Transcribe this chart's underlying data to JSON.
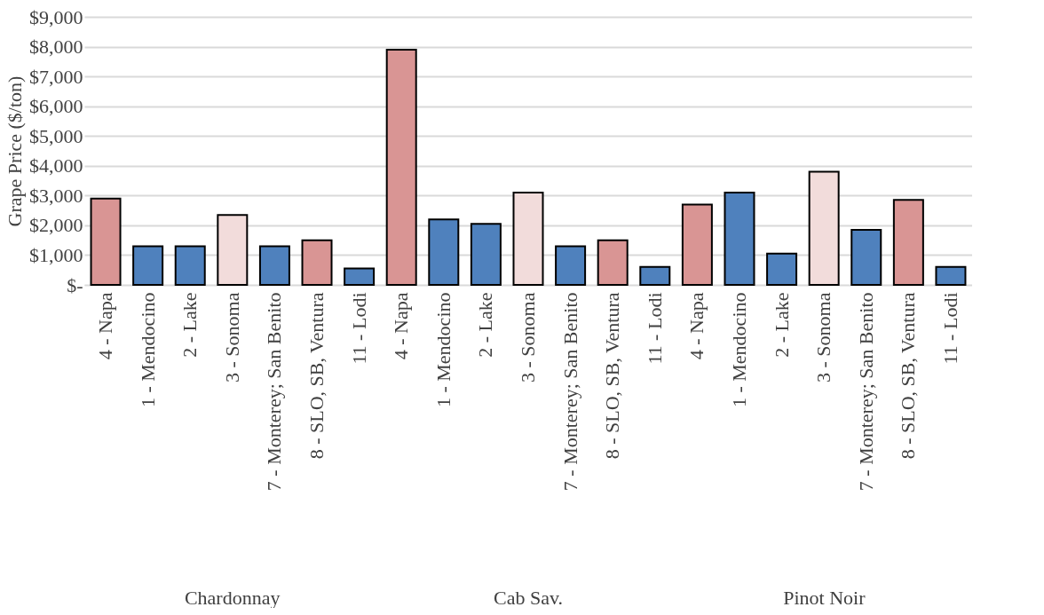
{
  "chart_data": {
    "type": "bar",
    "ylabel": "Grape Price ($/ton)",
    "categories": [
      "4 - Napa",
      "1 - Mendocino",
      "2 - Lake",
      "3 - Sonoma",
      "7 - Monterey; San Benito",
      "8 - SLO, SB, Ventura",
      "11 - Lodi",
      "4 - Napa",
      "1 - Mendocino",
      "2 - Lake",
      "3 - Sonoma",
      "7 - Monterey; San Benito",
      "8 - SLO, SB, Ventura",
      "11 - Lodi",
      "4 - Napa",
      "1 - Mendocino",
      "2 - Lake",
      "3 - Sonoma",
      "7 - Monterey; San Benito",
      "8 - SLO, SB, Ventura",
      "11 - Lodi"
    ],
    "values": [
      2900,
      1300,
      1300,
      2350,
      1300,
      1500,
      550,
      7900,
      2200,
      2050,
      3100,
      1300,
      1500,
      600,
      2700,
      3100,
      1050,
      3800,
      1850,
      2850,
      600
    ],
    "colors": [
      "#d99594",
      "#4f81bd",
      "#4f81bd",
      "#f2dcdb",
      "#4f81bd",
      "#d99594",
      "#4f81bd",
      "#d99594",
      "#4f81bd",
      "#4f81bd",
      "#f2dcdb",
      "#4f81bd",
      "#d99594",
      "#4f81bd",
      "#d99594",
      "#4f81bd",
      "#4f81bd",
      "#f2dcdb",
      "#4f81bd",
      "#d99594",
      "#4f81bd"
    ],
    "ylim": [
      0,
      9000
    ],
    "yticks": [
      {
        "value": 0,
        "label": "$-"
      },
      {
        "value": 1000,
        "label": "$1,000"
      },
      {
        "value": 2000,
        "label": "$2,000"
      },
      {
        "value": 3000,
        "label": "$3,000"
      },
      {
        "value": 4000,
        "label": "$4,000"
      },
      {
        "value": 5000,
        "label": "$5,000"
      },
      {
        "value": 6000,
        "label": "$6,000"
      },
      {
        "value": 7000,
        "label": "$7,000"
      },
      {
        "value": 8000,
        "label": "$8,000"
      },
      {
        "value": 9000,
        "label": "$9,000"
      }
    ],
    "grid": "y",
    "annotations": [
      "Chardonnay",
      "Cab Sav.",
      "Pinot Noir"
    ]
  }
}
